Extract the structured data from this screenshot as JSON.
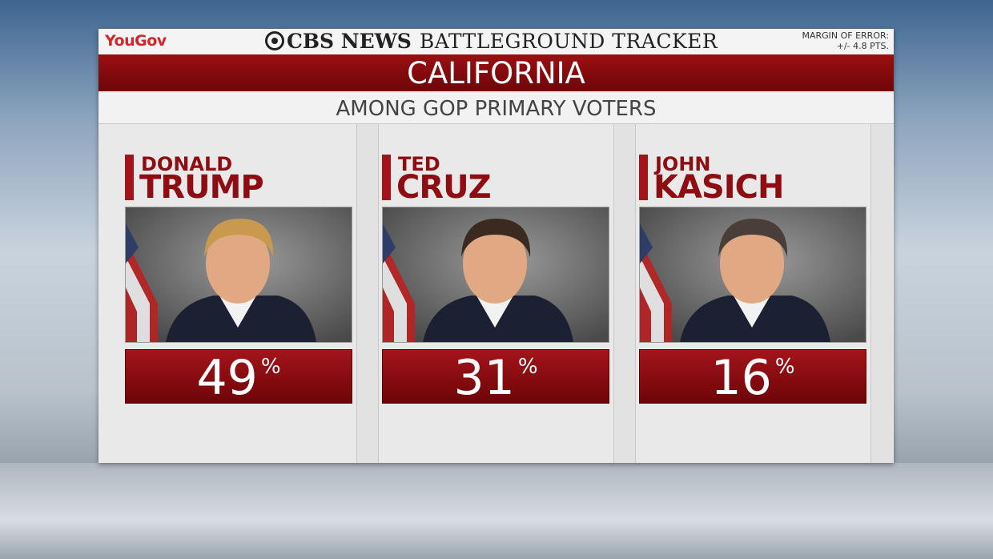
{
  "header": {
    "left_logo": "YouGov",
    "network": "CBS NEWS",
    "title": "BATTLEGROUND TRACKER",
    "margin_label": "MARGIN OF ERROR:",
    "margin_value": "+/- 4.8 PTS."
  },
  "state": "CALIFORNIA",
  "subtitle": "AMONG GOP PRIMARY VOTERS",
  "candidates": [
    {
      "first": "DONALD",
      "last": "TRUMP",
      "value": 49,
      "unit": "%"
    },
    {
      "first": "TED",
      "last": "CRUZ",
      "value": 31,
      "unit": "%"
    },
    {
      "first": "JOHN",
      "last": "KASICH",
      "value": 16,
      "unit": "%"
    }
  ]
}
